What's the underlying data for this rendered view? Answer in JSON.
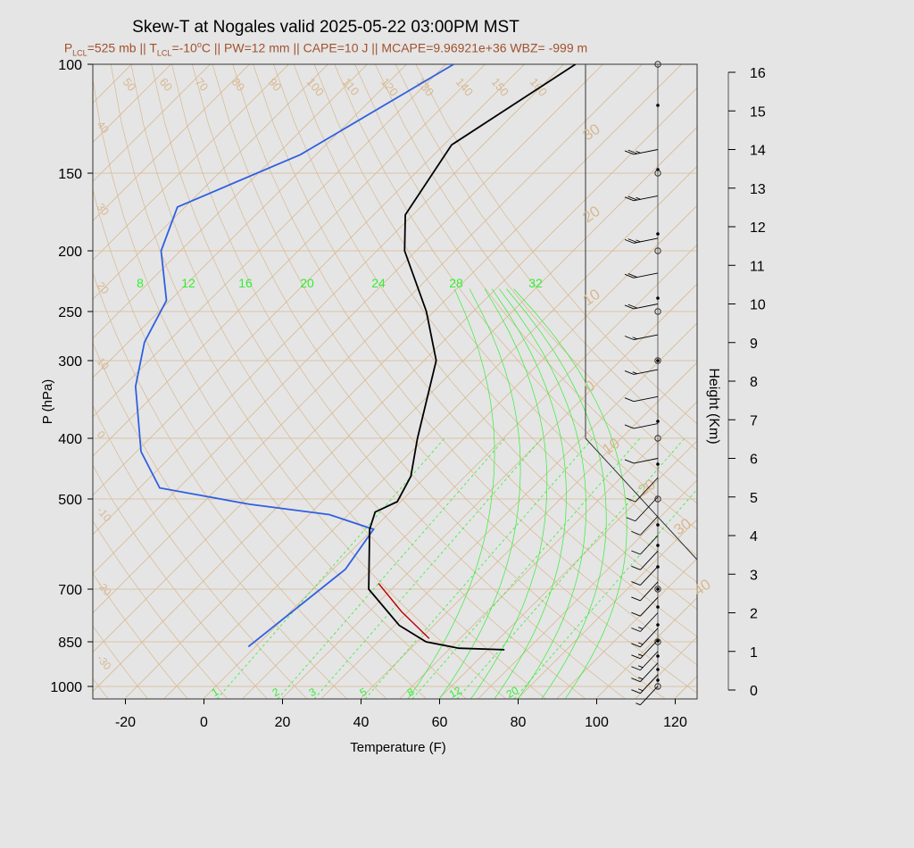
{
  "header": {
    "title": "Skew-T at Nogales valid 2025-05-22 03:00PM MST",
    "subtitle_parts": [
      "P",
      "LCL",
      "=525 mb || T",
      "LCL",
      "=-10",
      "o",
      "C || PW=12 mm || CAPE=10 J || MCAPE=9.96921e+36 WBZ= -999 m"
    ]
  },
  "colors": {
    "temperature": "#000000",
    "dewpoint": "#3060e0",
    "parcel": "#c00000",
    "isotherm": "#d8b890",
    "mixing_ratio": "#33ee33",
    "height_axis": "#555555",
    "background": "#e5e5e5"
  },
  "chart_data": {
    "type": "skew-t",
    "xlabel": "Temperature (F)",
    "ylabel": "P (hPa)",
    "y2label": "Height (Km)",
    "x_ticks": [
      "-20",
      "0",
      "20",
      "40",
      "60",
      "80",
      "100",
      "120"
    ],
    "x_tick_values": [
      -20,
      0,
      20,
      40,
      60,
      80,
      100,
      120
    ],
    "xlim": [
      -28,
      125
    ],
    "p_ticks": [
      "100",
      "150",
      "200",
      "250",
      "300",
      "400",
      "500",
      "700",
      "850",
      "1000"
    ],
    "p_tick_values": [
      100,
      150,
      200,
      250,
      300,
      400,
      500,
      700,
      850,
      1000
    ],
    "plim": [
      1050,
      100
    ],
    "height_ticks": [
      "0",
      "1",
      "2",
      "3",
      "4",
      "5",
      "6",
      "7",
      "8",
      "9",
      "10",
      "11",
      "12",
      "13",
      "14",
      "15",
      "16"
    ],
    "isotherm_labels_top": [
      "50",
      "60",
      "70",
      "80",
      "90",
      "100",
      "110",
      "120",
      "130",
      "140",
      "150",
      "160"
    ],
    "isotherm_labels_left": [
      "40",
      "30",
      "20",
      "10",
      "0",
      "-10",
      "-20",
      "-30"
    ],
    "isotherm_labels_right": [
      "30",
      "20",
      "10",
      "0",
      "10",
      "20",
      "30",
      "40"
    ],
    "mixing_ratio_top_labels": [
      "8",
      "12",
      "16",
      "20",
      "24",
      "28",
      "32"
    ],
    "mixing_ratio_bottom_labels": [
      "1",
      "2",
      "3",
      "5",
      "8",
      "12",
      "20"
    ],
    "temperature_profile": [
      {
        "p": 100,
        "t": -67
      },
      {
        "p": 135,
        "t": -78
      },
      {
        "p": 175,
        "t": -72
      },
      {
        "p": 200,
        "t": -63
      },
      {
        "p": 250,
        "t": -42
      },
      {
        "p": 300,
        "t": -27
      },
      {
        "p": 400,
        "t": -12
      },
      {
        "p": 460,
        "t": -4
      },
      {
        "p": 505,
        "t": -1
      },
      {
        "p": 525,
        "t": -4
      },
      {
        "p": 560,
        "t": -1
      },
      {
        "p": 700,
        "t": 14
      },
      {
        "p": 800,
        "t": 31
      },
      {
        "p": 850,
        "t": 42
      },
      {
        "p": 870,
        "t": 52
      },
      {
        "p": 875,
        "t": 64
      }
    ],
    "dewpoint_profile": [
      {
        "p": 100,
        "t": -98
      },
      {
        "p": 140,
        "t": -114
      },
      {
        "p": 170,
        "t": -132
      },
      {
        "p": 200,
        "t": -125
      },
      {
        "p": 240,
        "t": -111
      },
      {
        "p": 280,
        "t": -106
      },
      {
        "p": 330,
        "t": -97
      },
      {
        "p": 420,
        "t": -79
      },
      {
        "p": 480,
        "t": -65
      },
      {
        "p": 510,
        "t": -38
      },
      {
        "p": 530,
        "t": -15
      },
      {
        "p": 560,
        "t": 0
      },
      {
        "p": 650,
        "t": 3
      },
      {
        "p": 865,
        "t": -2
      }
    ],
    "parcel_profile": [
      {
        "p": 685,
        "t": 15
      },
      {
        "p": 760,
        "t": 28
      },
      {
        "p": 840,
        "t": 42
      }
    ],
    "wind_barbs": [
      {
        "height_km": 0.1,
        "speed_kt": 5
      },
      {
        "height_km": 0.4,
        "speed_kt": 15
      },
      {
        "height_km": 0.7,
        "speed_kt": 15
      },
      {
        "height_km": 1.0,
        "speed_kt": 15
      },
      {
        "height_km": 1.3,
        "speed_kt": 15
      },
      {
        "height_km": 1.6,
        "speed_kt": 15
      },
      {
        "height_km": 2.0,
        "speed_kt": 15
      },
      {
        "height_km": 2.4,
        "speed_kt": 10
      },
      {
        "height_km": 2.8,
        "speed_kt": 10
      },
      {
        "height_km": 3.2,
        "speed_kt": 10
      },
      {
        "height_km": 3.6,
        "speed_kt": 10
      },
      {
        "height_km": 4.0,
        "speed_kt": 10
      },
      {
        "height_km": 4.5,
        "speed_kt": 10
      },
      {
        "height_km": 5.0,
        "speed_kt": 10
      },
      {
        "height_km": 5.5,
        "speed_kt": 10
      },
      {
        "height_km": 6.0,
        "speed_kt": 10
      },
      {
        "height_km": 6.9,
        "speed_kt": 10
      },
      {
        "height_km": 7.6,
        "speed_kt": 10
      },
      {
        "height_km": 8.3,
        "speed_kt": 15
      },
      {
        "height_km": 9.2,
        "speed_kt": 15
      },
      {
        "height_km": 10.0,
        "speed_kt": 20
      },
      {
        "height_km": 10.8,
        "speed_kt": 20
      },
      {
        "height_km": 11.7,
        "speed_kt": 25
      },
      {
        "height_km": 12.8,
        "speed_kt": 25
      },
      {
        "height_km": 14.0,
        "speed_kt": 25
      }
    ]
  }
}
